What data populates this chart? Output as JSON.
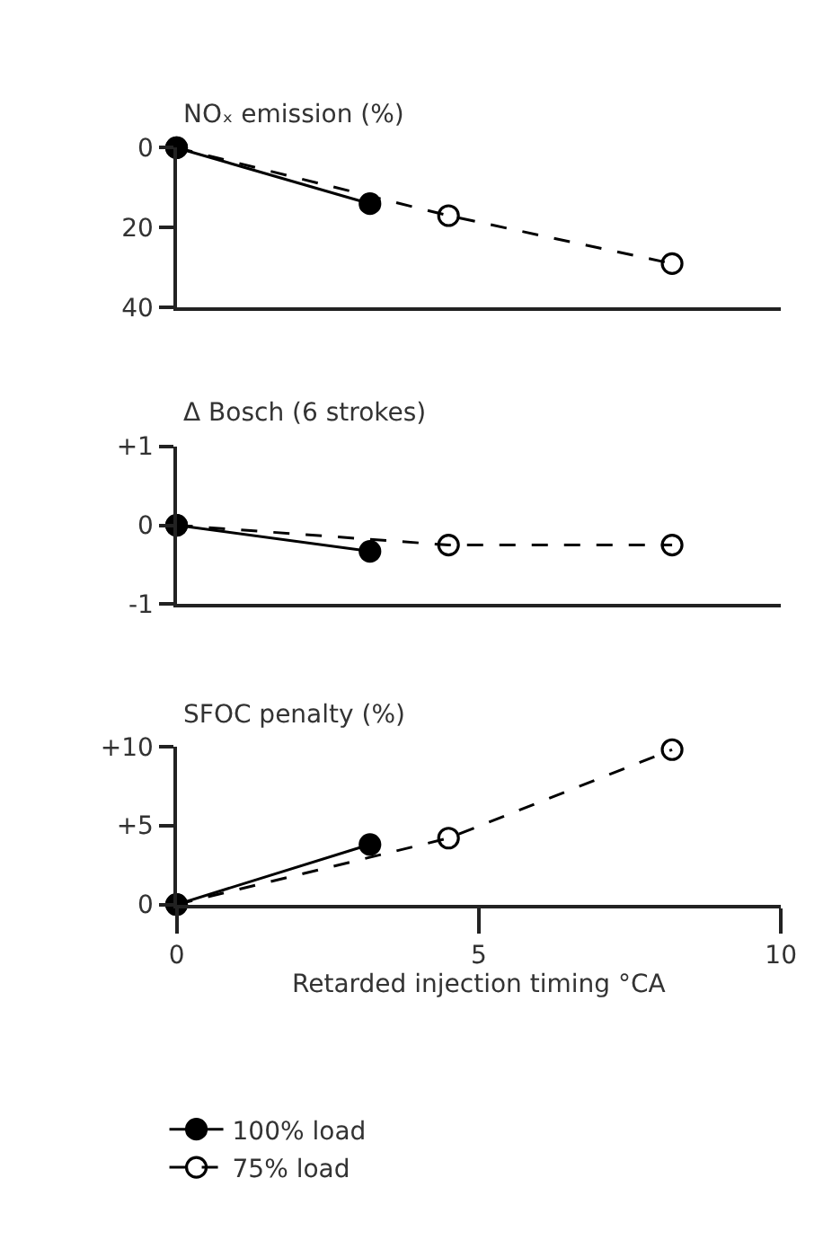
{
  "chart_data": [
    {
      "type": "line",
      "title": "NOₓ emission (%)",
      "xlim": [
        0,
        10
      ],
      "ylim": [
        40,
        0
      ],
      "yticks": [
        0,
        20,
        40
      ],
      "tick_labels": "y",
      "legend": false,
      "series": [
        {
          "color": "#000000",
          "marker": "circle",
          "line_style": "solid",
          "x": [
            0,
            3.2
          ],
          "values": [
            0,
            14
          ]
        },
        {
          "color": "#000000",
          "marker": "circle-open",
          "line_style": "dashed",
          "x": [
            0,
            4.5,
            8.2
          ],
          "values": [
            0,
            17,
            29
          ]
        }
      ]
    },
    {
      "type": "line",
      "title": "Δ Bosch (6 strokes)",
      "xlim": [
        0,
        10
      ],
      "ylim": [
        -1,
        1
      ],
      "yticks": [
        {
          "value": 1,
          "label": "+1"
        },
        0,
        -1
      ],
      "tick_labels": "y",
      "legend": false,
      "series": [
        {
          "color": "#000000",
          "marker": "circle",
          "line_style": "solid",
          "x": [
            0,
            3.2
          ],
          "values": [
            0,
            -0.33
          ]
        },
        {
          "color": "#000000",
          "marker": "circle-open",
          "line_style": "dashed",
          "x": [
            0,
            4.5,
            8.2
          ],
          "values": [
            0,
            -0.25,
            -0.25
          ]
        }
      ]
    },
    {
      "type": "line",
      "title": "SFOC penalty (%)",
      "xlabel": "Retarded injection timing °CA",
      "xlim": [
        0,
        10
      ],
      "xticks": [
        0,
        5,
        10
      ],
      "ylim": [
        0,
        10
      ],
      "yticks": [
        0,
        {
          "value": 5,
          "label": "+5"
        },
        {
          "value": 10,
          "label": "+10"
        }
      ],
      "legend": "bottom",
      "series": [
        {
          "name": "100% load",
          "color": "#000000",
          "marker": "circle",
          "line_style": "solid",
          "x": [
            0,
            3.2
          ],
          "values": [
            0,
            3.8
          ]
        },
        {
          "name": "75% load",
          "color": "#000000",
          "marker": "circle-open",
          "line_style": "dashed",
          "x": [
            0,
            4.5,
            8.2
          ],
          "values": [
            0,
            4.2,
            9.8
          ]
        }
      ]
    }
  ]
}
